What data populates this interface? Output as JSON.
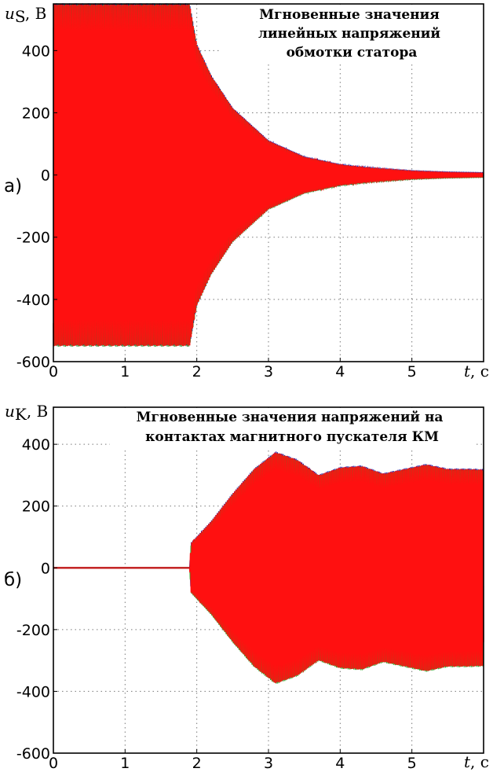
{
  "chart_data": [
    {
      "type": "line",
      "panel_label": "а)",
      "title_lines": [
        "Мгновенные значения",
        "линейных напряжений",
        "обмотки статора"
      ],
      "ylabel_var": "u",
      "ylabel_sub": "S",
      "ylabel_unit": ", В",
      "xlabel_var": "t",
      "xlabel_unit": ", с",
      "xlim": [
        0,
        6
      ],
      "ylim": [
        -600,
        550
      ],
      "xticks": [
        "0",
        "1",
        "2",
        "3",
        "4",
        "5"
      ],
      "yticks": [
        "400",
        "200",
        "0",
        "-200",
        "-400",
        "-600"
      ],
      "grid": true,
      "colors": [
        "#1a1aa0",
        "#2a8a2a",
        "#ff1010"
      ],
      "envelope": {
        "t": [
          0,
          0.5,
          1.0,
          1.5,
          1.9,
          2.0,
          2.2,
          2.5,
          3.0,
          3.5,
          4.0,
          4.5,
          5.0,
          5.5,
          6.0
        ],
        "amplitude": [
          550,
          550,
          550,
          550,
          550,
          420,
          320,
          215,
          110,
          58,
          33,
          20,
          12,
          8,
          6
        ]
      }
    },
    {
      "type": "line",
      "panel_label": "б)",
      "title_lines": [
        "Мгновенные значения напряжений на",
        "контактах магнитного пускателя КМ"
      ],
      "ylabel_var": "u",
      "ylabel_sub": "K",
      "ylabel_unit": ", В",
      "xlabel_var": "t",
      "xlabel_unit": ", с",
      "xlim": [
        0,
        6
      ],
      "ylim": [
        -600,
        520
      ],
      "xticks": [
        "0",
        "1",
        "2",
        "3",
        "4",
        "5"
      ],
      "yticks": [
        "400",
        "200",
        "0",
        "-200",
        "-400",
        "-600"
      ],
      "grid": true,
      "colors": [
        "#1a1aa0",
        "#2aa82a",
        "#ff1010"
      ],
      "envelope": {
        "t": [
          0,
          1.9,
          1.92,
          2.2,
          2.5,
          2.8,
          3.1,
          3.4,
          3.7,
          4.0,
          4.3,
          4.6,
          4.9,
          5.2,
          5.5,
          5.8,
          6.0
        ],
        "amplitude": [
          0,
          0,
          80,
          150,
          240,
          320,
          375,
          350,
          300,
          325,
          330,
          305,
          320,
          335,
          320,
          320,
          318
        ]
      }
    }
  ]
}
